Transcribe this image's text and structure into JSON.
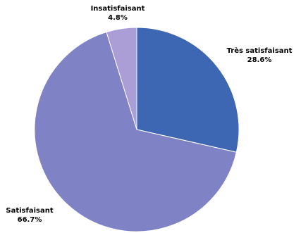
{
  "chart_data": {
    "type": "pie",
    "categories": [
      "Très satisfaisant",
      "Satisfaisant",
      "Insatisfaisant"
    ],
    "values": [
      28.6,
      66.7,
      4.8
    ],
    "value_labels": [
      "28.6%",
      "66.7%",
      "4.8%"
    ],
    "colors": [
      "#3d67b2",
      "#7f83c5",
      "#ab9ed6"
    ],
    "title": "",
    "legend": "none",
    "start_angle": "12 o'clock, clockwise"
  }
}
